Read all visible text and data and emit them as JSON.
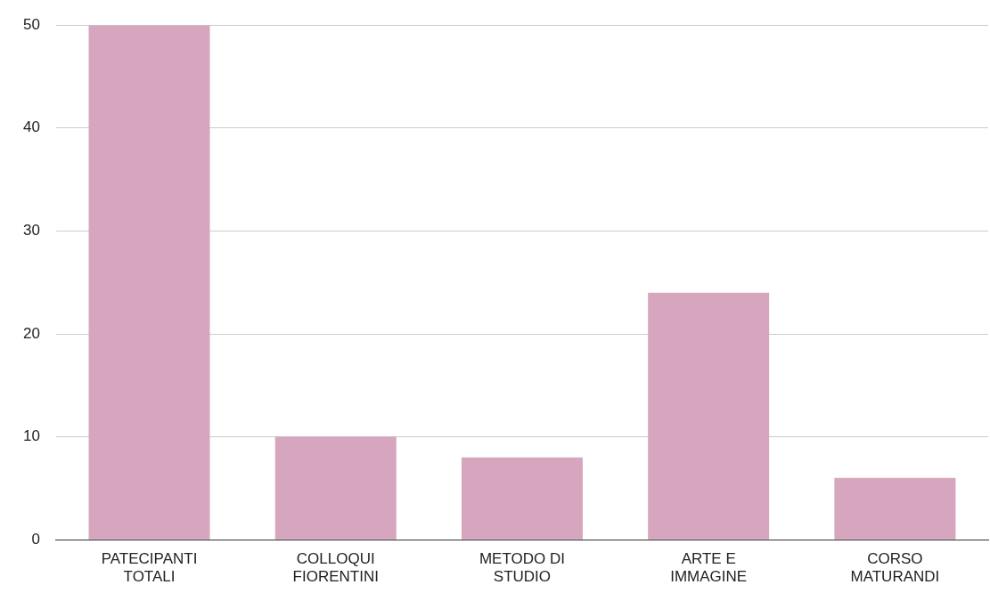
{
  "chart_data": {
    "type": "bar",
    "categories": [
      "PATECIPANTI TOTALI",
      "COLLOQUI FIORENTINI",
      "METODO DI STUDIO",
      "ARTE E IMMAGINE",
      "CORSO MATURANDI"
    ],
    "values": [
      50,
      10,
      8,
      24,
      6
    ],
    "color": "#d5a6bd",
    "ylim": [
      0,
      50
    ],
    "yticks": [
      0,
      10,
      20,
      30,
      40,
      50
    ],
    "grid": "y"
  }
}
